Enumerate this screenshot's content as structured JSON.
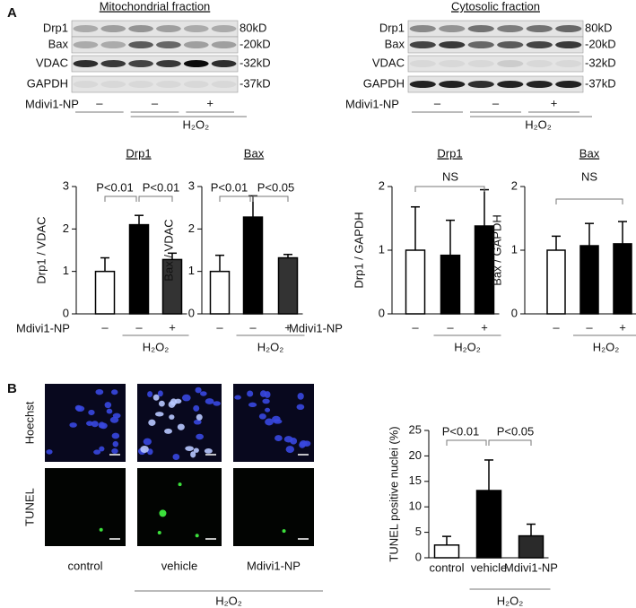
{
  "panel_labels": [
    "A",
    "B"
  ],
  "blots": [
    {
      "title": "Mitochondrial fraction",
      "proteins": [
        "Drp1",
        "Bax",
        "VDAC",
        "GAPDH"
      ],
      "sizes": [
        "80kD",
        "-20kD",
        "-32kD",
        "-37kD"
      ],
      "row_label": "Mdivi1-NP",
      "signs": [
        "–",
        "–",
        "+"
      ],
      "group_label": "H₂O₂"
    },
    {
      "title": "Cytosolic fraction",
      "proteins": [
        "Drp1",
        "Bax",
        "VDAC",
        "GAPDH"
      ],
      "sizes": [
        "80kD",
        "-20kD",
        "-32kD",
        "-37kD"
      ],
      "row_label": "Mdivi1-NP",
      "signs": [
        "–",
        "–",
        "+"
      ],
      "group_label": "H₂O₂"
    }
  ],
  "micrographs": {
    "rows": [
      "Hoechst",
      "TUNEL"
    ],
    "columns": [
      "control",
      "vehicle",
      "Mdivi1-NP"
    ],
    "group_label": "H₂O₂"
  },
  "chart_data": [
    {
      "type": "bar",
      "title": "Drp1",
      "y_label": "Drp1 / VDAC",
      "x_row_label": "Mdivi1-NP",
      "categories": [
        "–",
        "–",
        "+"
      ],
      "group_label": "H₂O₂",
      "values": [
        1.0,
        2.1,
        1.28
      ],
      "errors": [
        0.32,
        0.22,
        0.15
      ],
      "colors": [
        "#ffffff",
        "#000000",
        "#333333"
      ],
      "ylim": [
        0,
        3
      ],
      "yticks": [
        0,
        1,
        2,
        3
      ],
      "annotations": [
        "P<0.01",
        "P<0.01"
      ]
    },
    {
      "type": "bar",
      "title": "Bax",
      "y_label": "Bax / VDAC",
      "categories": [
        "–",
        "–",
        "+"
      ],
      "group_label": "H₂O₂",
      "values": [
        1.0,
        2.28,
        1.32
      ],
      "errors": [
        0.38,
        0.5,
        0.08
      ],
      "colors": [
        "#ffffff",
        "#000000",
        "#333333"
      ],
      "ylim": [
        0,
        3
      ],
      "yticks": [
        0,
        1,
        2,
        3
      ],
      "annotations": [
        "P<0.01",
        "P<0.05"
      ]
    },
    {
      "type": "bar",
      "title": "Drp1",
      "y_label": "Drp1 / GAPDH",
      "x_row_label": "Mdivi1-NP",
      "categories": [
        "–",
        "–",
        "+"
      ],
      "group_label": "H₂O₂",
      "values": [
        1.0,
        0.92,
        1.38
      ],
      "errors": [
        0.68,
        0.55,
        0.57
      ],
      "colors": [
        "#ffffff",
        "#000000",
        "#000000"
      ],
      "ylim": [
        0,
        2
      ],
      "yticks": [
        0,
        1,
        2
      ],
      "annotations": [
        "NS"
      ]
    },
    {
      "type": "bar",
      "title": "Bax",
      "y_label": "Bax / GAPDH",
      "categories": [
        "–",
        "–",
        "+"
      ],
      "group_label": "H₂O₂",
      "values": [
        1.0,
        1.07,
        1.1
      ],
      "errors": [
        0.22,
        0.35,
        0.35
      ],
      "colors": [
        "#ffffff",
        "#000000",
        "#000000"
      ],
      "ylim": [
        0,
        2
      ],
      "yticks": [
        0,
        1,
        2
      ],
      "annotations": [
        "NS"
      ]
    },
    {
      "type": "bar",
      "y_label": "TUNEL positive nuclei (%)",
      "categories": [
        "control",
        "vehicle",
        "Mdivi1-NP"
      ],
      "group_label": "H₂O₂",
      "values": [
        2.5,
        13.2,
        4.3
      ],
      "errors": [
        1.7,
        6.0,
        2.3
      ],
      "colors": [
        "#ffffff",
        "#000000",
        "#2a2a2a"
      ],
      "ylim": [
        0,
        25
      ],
      "yticks": [
        0,
        5,
        10,
        15,
        20,
        25
      ],
      "annotations": [
        "P<0.01",
        "P<0.05"
      ]
    }
  ]
}
